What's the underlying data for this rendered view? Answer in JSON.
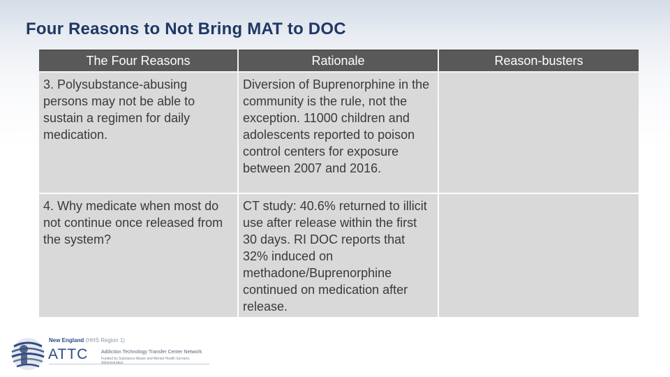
{
  "slide": {
    "title": "Four Reasons to Not Bring MAT to DOC"
  },
  "table": {
    "headers": [
      "The Four Reasons",
      "Rationale",
      "Reason-busters"
    ],
    "rows": [
      {
        "reason": "3. Polysubstance-abusing persons may not be able to sustain a regimen for  daily medication.",
        "rationale": "Diversion of Buprenorphine in the community is the rule, not the exception.  11000 children and adolescents reported to poison control centers for exposure between 2007 and 2016.",
        "reason_buster": ""
      },
      {
        "reason": "4. Why medicate when most do not continue once released from the system?",
        "rationale": "CT study: 40.6% returned to illicit use after release within the first 30 days.  RI DOC reports that 32% induced on methadone/Buprenorphine continued on medication after release.",
        "reason_buster": ""
      }
    ]
  },
  "footer": {
    "region": "New England",
    "region_sub": "(HHS Region 1)",
    "acronym": "ATTC",
    "network_name": "Addiction Technology Transfer Center Network",
    "funded_by": "Funded by Substance Abuse and Mental Health Services Administration"
  },
  "colors": {
    "title": "#1f3864",
    "header_bg": "#595959",
    "cell_bg": "#d9d9d9",
    "logo_blue": "#2e4a86"
  }
}
